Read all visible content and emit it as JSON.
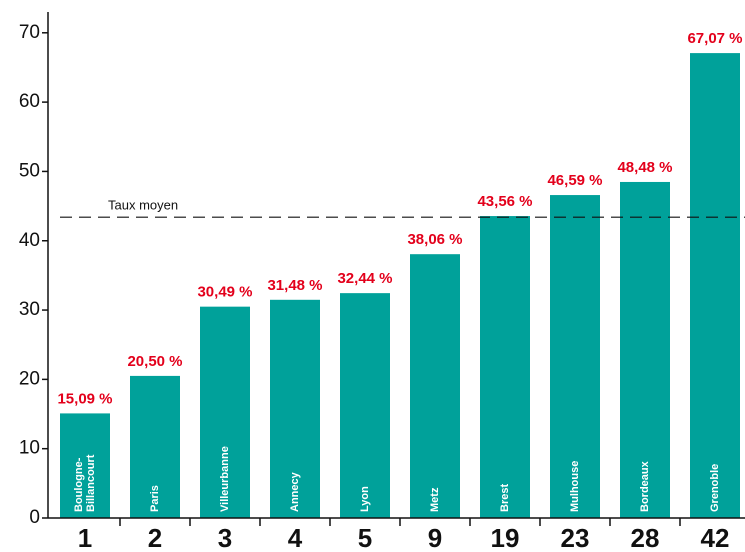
{
  "chart_data": {
    "type": "bar",
    "categories": [
      "1",
      "2",
      "3",
      "4",
      "5",
      "9",
      "19",
      "23",
      "28",
      "42"
    ],
    "bar_labels": [
      [
        "Boulogne-",
        "Billancourt"
      ],
      [
        "Paris"
      ],
      [
        "Villeurbanne"
      ],
      [
        "Annecy"
      ],
      [
        "Lyon"
      ],
      [
        "Metz"
      ],
      [
        "Brest"
      ],
      [
        "Mulhouse"
      ],
      [
        "Bordeaux"
      ],
      [
        "Grenoble"
      ]
    ],
    "values": [
      15.09,
      20.5,
      30.49,
      31.48,
      32.44,
      38.06,
      43.56,
      46.59,
      48.48,
      67.07
    ],
    "value_labels": [
      "15,09 %",
      "20,50 %",
      "30,49 %",
      "31,48 %",
      "32,44 %",
      "38,06 %",
      "43,56 %",
      "46,59 %",
      "48,48 %",
      "67,07 %"
    ],
    "color": "#00a19a",
    "value_label_color": "#e3001b",
    "ylim": [
      0,
      73
    ],
    "yticks": [
      0,
      10,
      20,
      30,
      40,
      50,
      60,
      70
    ],
    "reference_line": {
      "label": "Taux moyen",
      "value": 43.4
    }
  }
}
